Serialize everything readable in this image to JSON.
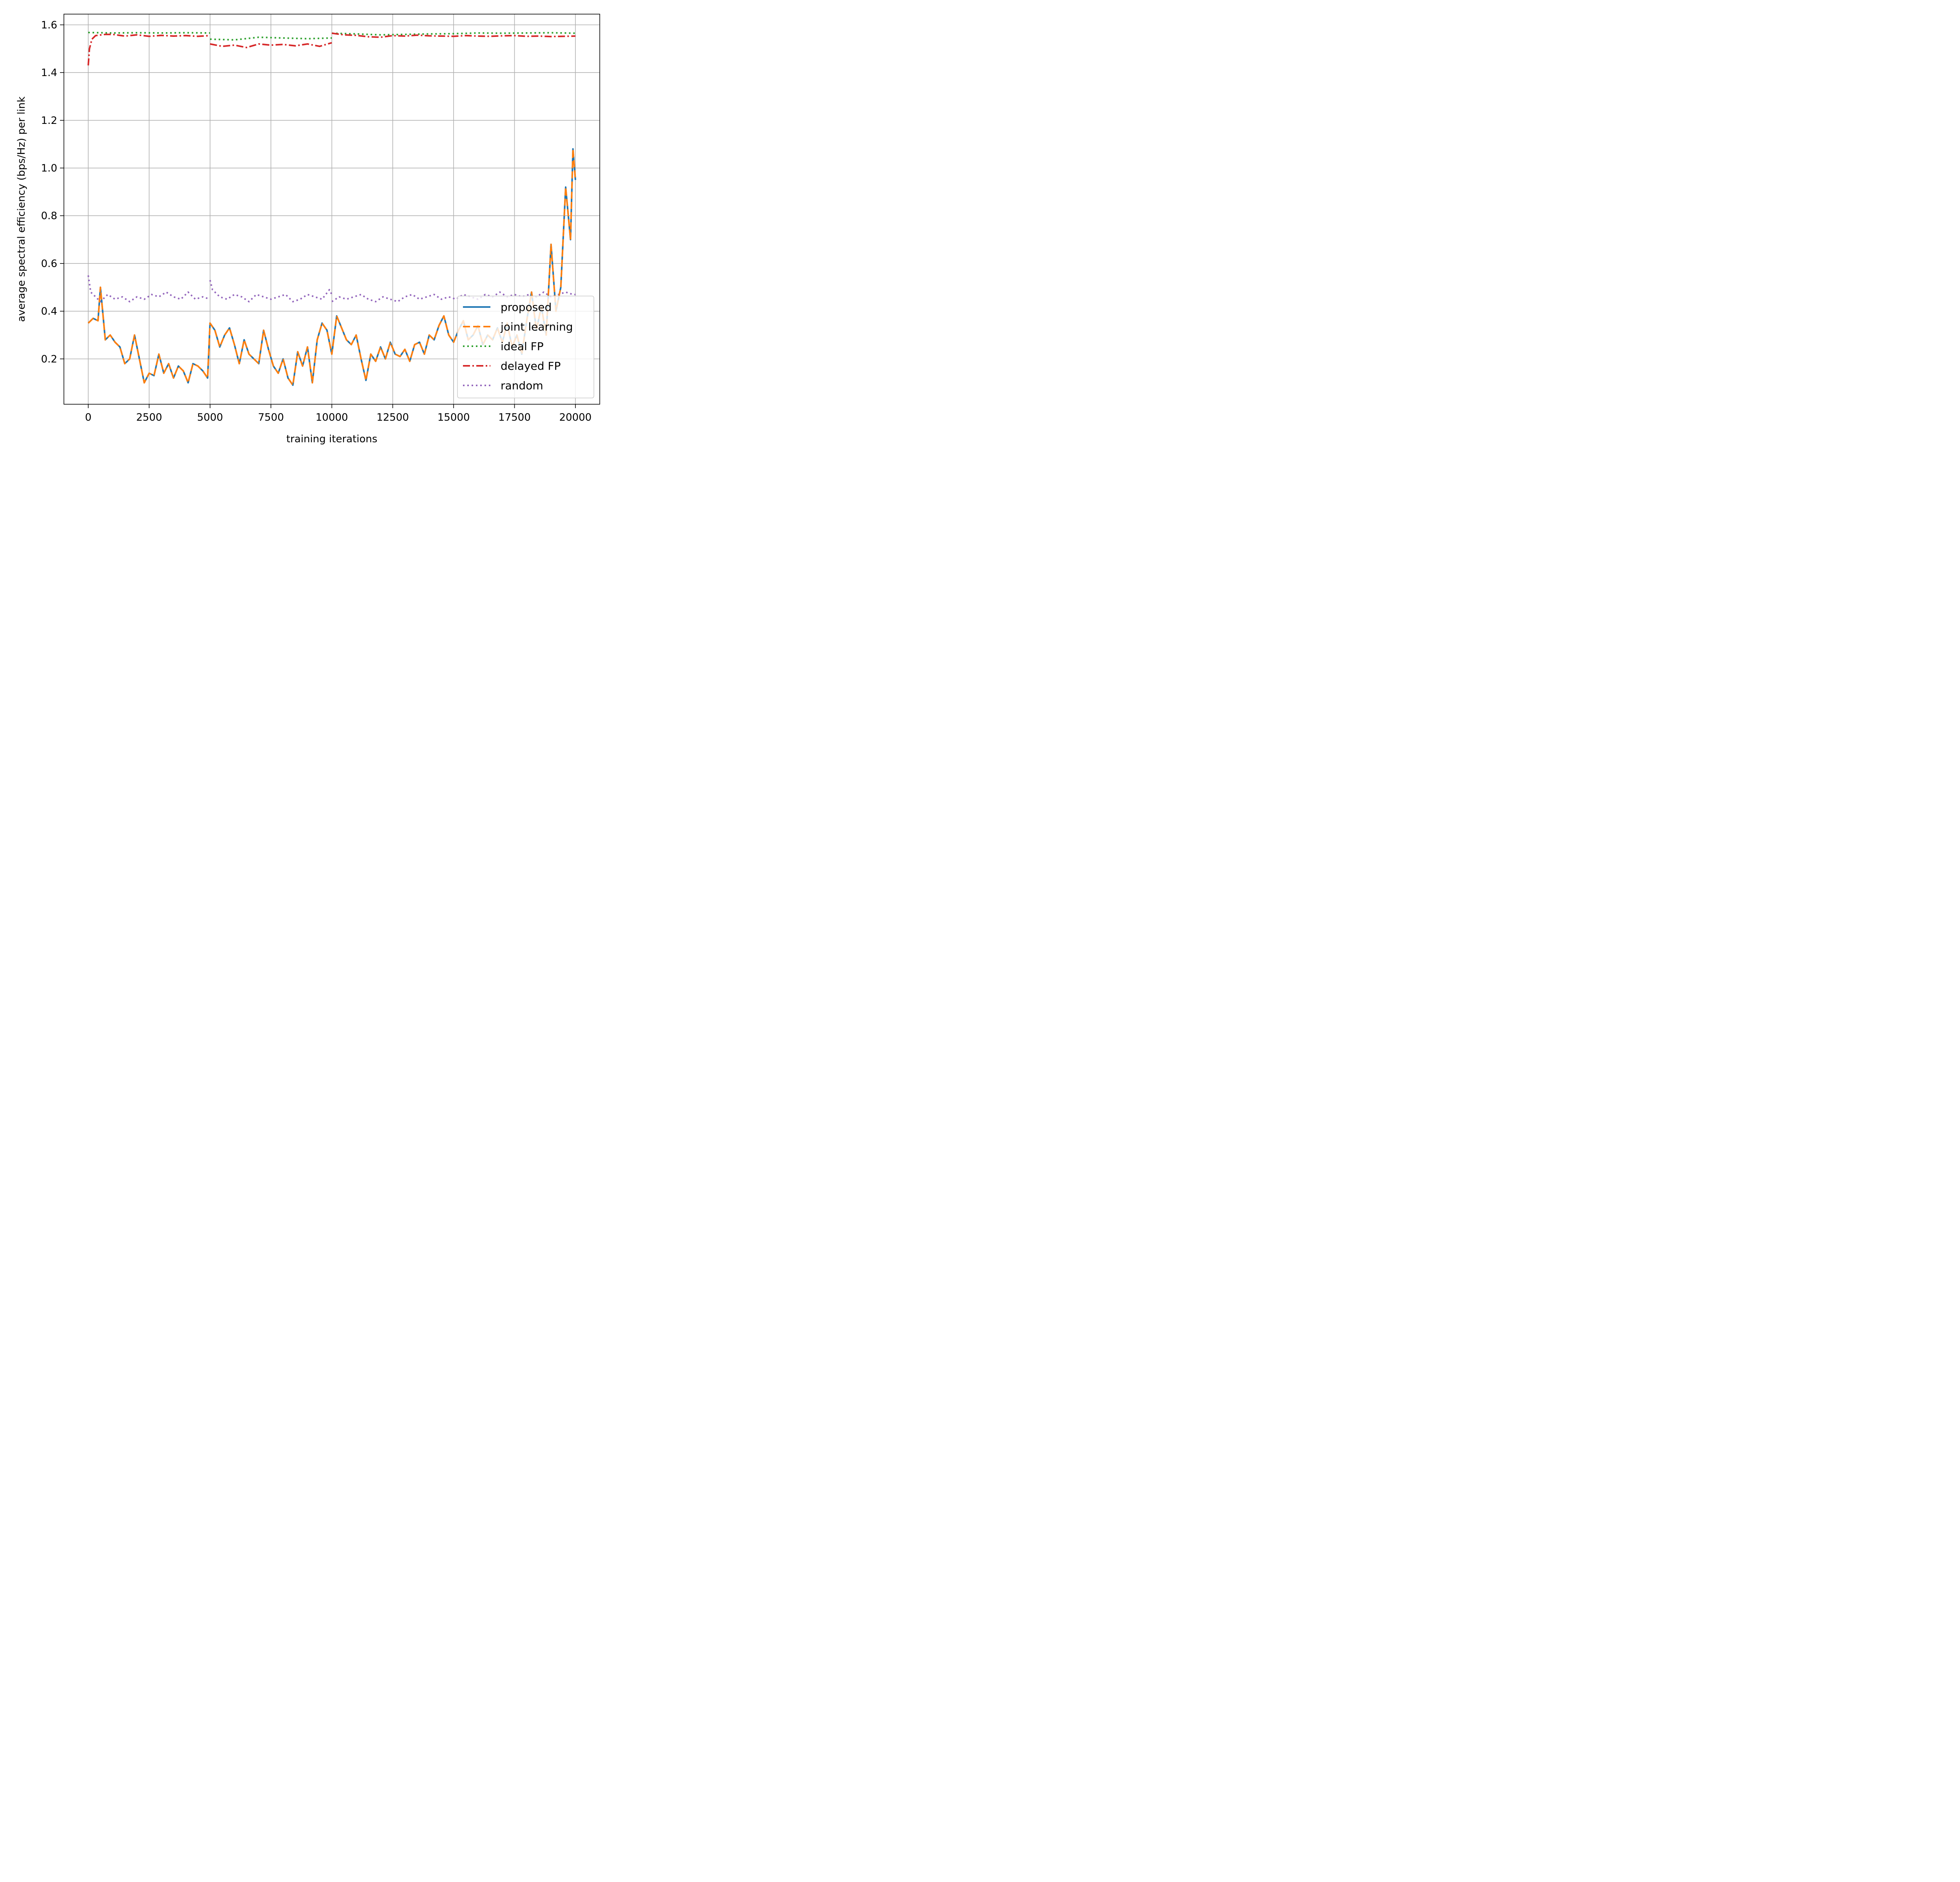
{
  "chart_data": {
    "type": "line",
    "title": "",
    "xlabel": "training iterations",
    "ylabel": "average spectral efficiency (bps/Hz) per link",
    "xlim": [
      -1000,
      21000
    ],
    "ylim": [
      0.01,
      1.645
    ],
    "xticks": [
      0,
      2500,
      5000,
      7500,
      10000,
      12500,
      15000,
      17500,
      20000
    ],
    "xtick_labels": [
      "0",
      "2500",
      "5000",
      "7500",
      "10000",
      "12500",
      "15000",
      "17500",
      "20000"
    ],
    "yticks": [
      0.2,
      0.4,
      0.6,
      0.8,
      1.0,
      1.2,
      1.4,
      1.6
    ],
    "ytick_labels": [
      "0.2",
      "0.4",
      "0.6",
      "0.8",
      "1.0",
      "1.2",
      "1.4",
      "1.6"
    ],
    "grid": true,
    "legend_position": "lower-right",
    "series": [
      {
        "name": "proposed",
        "color": "#1f77b4",
        "style": "solid",
        "x": [
          0,
          200,
          400,
          500,
          700,
          900,
          1100,
          1300,
          1500,
          1700,
          1900,
          2100,
          2300,
          2500,
          2700,
          2900,
          3100,
          3300,
          3500,
          3700,
          3900,
          4100,
          4300,
          4500,
          4700,
          4900,
          5000,
          5200,
          5400,
          5600,
          5800,
          6000,
          6200,
          6400,
          6600,
          6800,
          7000,
          7200,
          7400,
          7600,
          7800,
          8000,
          8200,
          8400,
          8600,
          8800,
          9000,
          9200,
          9400,
          9600,
          9800,
          10000,
          10200,
          10400,
          10600,
          10800,
          11000,
          11200,
          11400,
          11600,
          11800,
          12000,
          12200,
          12400,
          12600,
          12800,
          13000,
          13200,
          13400,
          13600,
          13800,
          14000,
          14200,
          14400,
          14600,
          14800,
          15000,
          15200,
          15400,
          15600,
          15800,
          16000,
          16200,
          16400,
          16600,
          16800,
          17000,
          17200,
          17400,
          17600,
          17800,
          18000,
          18200,
          18400,
          18600,
          18800,
          19000,
          19200,
          19400,
          19600,
          19800,
          19900,
          20000
        ],
        "values": [
          0.35,
          0.37,
          0.36,
          0.5,
          0.28,
          0.3,
          0.27,
          0.25,
          0.18,
          0.2,
          0.3,
          0.2,
          0.1,
          0.14,
          0.13,
          0.22,
          0.14,
          0.18,
          0.12,
          0.17,
          0.15,
          0.1,
          0.18,
          0.17,
          0.15,
          0.12,
          0.35,
          0.32,
          0.25,
          0.3,
          0.33,
          0.26,
          0.18,
          0.28,
          0.22,
          0.2,
          0.18,
          0.32,
          0.24,
          0.17,
          0.14,
          0.2,
          0.12,
          0.09,
          0.23,
          0.17,
          0.25,
          0.1,
          0.28,
          0.35,
          0.32,
          0.22,
          0.38,
          0.33,
          0.28,
          0.26,
          0.3,
          0.2,
          0.11,
          0.22,
          0.19,
          0.25,
          0.2,
          0.27,
          0.22,
          0.21,
          0.24,
          0.19,
          0.26,
          0.27,
          0.22,
          0.3,
          0.28,
          0.34,
          0.38,
          0.3,
          0.27,
          0.32,
          0.36,
          0.28,
          0.3,
          0.34,
          0.26,
          0.3,
          0.28,
          0.33,
          0.27,
          0.35,
          0.25,
          0.3,
          0.22,
          0.36,
          0.48,
          0.32,
          0.42,
          0.3,
          0.68,
          0.4,
          0.5,
          0.92,
          0.7,
          1.08,
          0.95
        ]
      },
      {
        "name": "joint learning",
        "color": "#ff7f0e",
        "style": "dashed",
        "x": [
          0,
          200,
          400,
          500,
          700,
          900,
          1100,
          1300,
          1500,
          1700,
          1900,
          2100,
          2300,
          2500,
          2700,
          2900,
          3100,
          3300,
          3500,
          3700,
          3900,
          4100,
          4300,
          4500,
          4700,
          4900,
          5000,
          5200,
          5400,
          5600,
          5800,
          6000,
          6200,
          6400,
          6600,
          6800,
          7000,
          7200,
          7400,
          7600,
          7800,
          8000,
          8200,
          8400,
          8600,
          8800,
          9000,
          9200,
          9400,
          9600,
          9800,
          10000,
          10200,
          10400,
          10600,
          10800,
          11000,
          11200,
          11400,
          11600,
          11800,
          12000,
          12200,
          12400,
          12600,
          12800,
          13000,
          13200,
          13400,
          13600,
          13800,
          14000,
          14200,
          14400,
          14600,
          14800,
          15000,
          15200,
          15400,
          15600,
          15800,
          16000,
          16200,
          16400,
          16600,
          16800,
          17000,
          17200,
          17400,
          17600,
          17800,
          18000,
          18200,
          18400,
          18600,
          18800,
          19000,
          19200,
          19400,
          19600,
          19800,
          19900,
          20000
        ],
        "values": [
          0.35,
          0.37,
          0.36,
          0.5,
          0.28,
          0.3,
          0.27,
          0.25,
          0.18,
          0.2,
          0.3,
          0.2,
          0.1,
          0.14,
          0.13,
          0.22,
          0.14,
          0.18,
          0.12,
          0.17,
          0.15,
          0.1,
          0.18,
          0.17,
          0.15,
          0.12,
          0.35,
          0.32,
          0.25,
          0.3,
          0.33,
          0.26,
          0.18,
          0.28,
          0.22,
          0.2,
          0.18,
          0.32,
          0.24,
          0.17,
          0.14,
          0.2,
          0.12,
          0.09,
          0.23,
          0.17,
          0.25,
          0.1,
          0.28,
          0.35,
          0.32,
          0.22,
          0.38,
          0.33,
          0.28,
          0.26,
          0.3,
          0.2,
          0.11,
          0.22,
          0.19,
          0.25,
          0.2,
          0.27,
          0.22,
          0.21,
          0.24,
          0.19,
          0.26,
          0.27,
          0.22,
          0.3,
          0.28,
          0.34,
          0.38,
          0.3,
          0.27,
          0.32,
          0.36,
          0.28,
          0.3,
          0.34,
          0.26,
          0.3,
          0.28,
          0.33,
          0.27,
          0.35,
          0.25,
          0.3,
          0.22,
          0.36,
          0.48,
          0.32,
          0.42,
          0.3,
          0.68,
          0.4,
          0.5,
          0.92,
          0.7,
          1.08,
          0.95
        ]
      },
      {
        "name": "ideal FP",
        "color": "#2ca02c",
        "style": "dotted",
        "x": [
          0,
          1000,
          2000,
          3000,
          4000,
          5000,
          5000,
          6000,
          7000,
          8000,
          9000,
          10000,
          10000,
          11000,
          12000,
          13000,
          14000,
          15000,
          16000,
          17000,
          18000,
          19000,
          20000
        ],
        "values": [
          1.568,
          1.566,
          1.567,
          1.566,
          1.567,
          1.566,
          1.54,
          1.537,
          1.548,
          1.545,
          1.542,
          1.545,
          1.565,
          1.562,
          1.558,
          1.56,
          1.562,
          1.563,
          1.566,
          1.565,
          1.566,
          1.567,
          1.565
        ]
      },
      {
        "name": "delayed FP",
        "color": "#d62728",
        "style": "dashdot",
        "x": [
          0,
          50,
          150,
          300,
          700,
          1000,
          1500,
          2000,
          2500,
          3000,
          3500,
          4000,
          4500,
          5000,
          5000,
          5500,
          6000,
          6500,
          7000,
          7500,
          8000,
          8500,
          9000,
          9500,
          10000,
          10000,
          10500,
          11000,
          11500,
          12000,
          12500,
          13000,
          13500,
          14000,
          14500,
          15000,
          15500,
          16000,
          16500,
          17000,
          17500,
          18000,
          18500,
          19000,
          19500,
          20000
        ],
        "values": [
          1.43,
          1.5,
          1.54,
          1.555,
          1.56,
          1.56,
          1.553,
          1.558,
          1.552,
          1.556,
          1.553,
          1.555,
          1.552,
          1.555,
          1.52,
          1.51,
          1.515,
          1.505,
          1.52,
          1.515,
          1.518,
          1.512,
          1.52,
          1.51,
          1.525,
          1.565,
          1.558,
          1.556,
          1.55,
          1.548,
          1.555,
          1.553,
          1.557,
          1.554,
          1.553,
          1.552,
          1.555,
          1.553,
          1.552,
          1.554,
          1.555,
          1.552,
          1.553,
          1.551,
          1.552,
          1.553
        ]
      },
      {
        "name": "random",
        "color": "#9467bd",
        "style": "dotted",
        "x": [
          0,
          100,
          300,
          500,
          800,
          1100,
          1400,
          1700,
          2000,
          2300,
          2600,
          2900,
          3200,
          3500,
          3800,
          4100,
          4400,
          4700,
          5000,
          5000,
          5100,
          5400,
          5700,
          6000,
          6300,
          6600,
          6900,
          7200,
          7500,
          7800,
          8100,
          8400,
          8700,
          9000,
          9300,
          9600,
          9900,
          10000,
          10000,
          10300,
          10600,
          10900,
          11200,
          11500,
          11800,
          12100,
          12400,
          12700,
          13000,
          13300,
          13600,
          13900,
          14200,
          14500,
          14800,
          15100,
          15400,
          15700,
          16000,
          16300,
          16600,
          16900,
          17200,
          17500,
          17800,
          18100,
          18400,
          18700,
          19000,
          19300,
          19600,
          19900,
          20000
        ],
        "values": [
          0.55,
          0.48,
          0.46,
          0.44,
          0.47,
          0.45,
          0.46,
          0.44,
          0.46,
          0.45,
          0.47,
          0.46,
          0.48,
          0.46,
          0.45,
          0.48,
          0.45,
          0.46,
          0.45,
          0.53,
          0.49,
          0.46,
          0.45,
          0.47,
          0.46,
          0.44,
          0.47,
          0.46,
          0.45,
          0.46,
          0.47,
          0.44,
          0.45,
          0.47,
          0.46,
          0.45,
          0.49,
          0.47,
          0.44,
          0.46,
          0.45,
          0.46,
          0.47,
          0.45,
          0.44,
          0.46,
          0.45,
          0.44,
          0.46,
          0.47,
          0.45,
          0.46,
          0.47,
          0.45,
          0.46,
          0.45,
          0.47,
          0.46,
          0.45,
          0.47,
          0.46,
          0.48,
          0.46,
          0.47,
          0.46,
          0.47,
          0.46,
          0.48,
          0.46,
          0.47,
          0.48,
          0.47,
          0.47
        ]
      }
    ]
  }
}
